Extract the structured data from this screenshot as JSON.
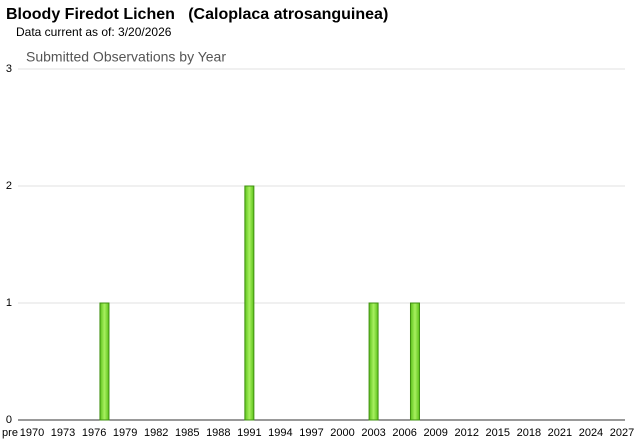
{
  "header": {
    "title": "Bloody Firedot Lichen   (Caloplaca atrosanguinea)",
    "subtitle": "Data current as of: 3/20/2026"
  },
  "chart_data": {
    "type": "bar",
    "title": "Submitted Observations by Year",
    "categories": [
      "pre",
      "1970",
      null,
      null,
      "1973",
      null,
      null,
      "1976",
      null,
      null,
      "1979",
      null,
      null,
      "1982",
      null,
      null,
      "1985",
      null,
      null,
      "1988",
      null,
      null,
      "1991",
      null,
      null,
      "1994",
      null,
      null,
      "1997",
      null,
      null,
      "2000",
      null,
      null,
      "2003",
      null,
      null,
      "2006",
      null,
      null,
      "2009",
      null,
      null,
      "2012",
      null,
      null,
      "2015",
      null,
      null,
      "2018",
      null,
      null,
      "2021",
      null,
      null,
      "2024",
      null,
      null,
      "2027"
    ],
    "values": [
      0,
      0,
      0,
      0,
      0,
      0,
      0,
      0,
      1,
      0,
      0,
      0,
      0,
      0,
      0,
      0,
      0,
      0,
      0,
      0,
      0,
      0,
      2,
      0,
      0,
      0,
      0,
      0,
      0,
      0,
      0,
      0,
      0,
      0,
      1,
      0,
      0,
      0,
      1,
      0,
      0,
      0,
      0,
      0,
      0,
      0,
      0,
      0,
      0,
      0,
      0,
      0,
      0,
      0,
      0,
      0,
      0,
      0,
      0
    ],
    "color": "#7ed83a",
    "ylim": [
      0,
      3
    ],
    "yticks": [
      0,
      1,
      2,
      3
    ],
    "grid": true
  }
}
